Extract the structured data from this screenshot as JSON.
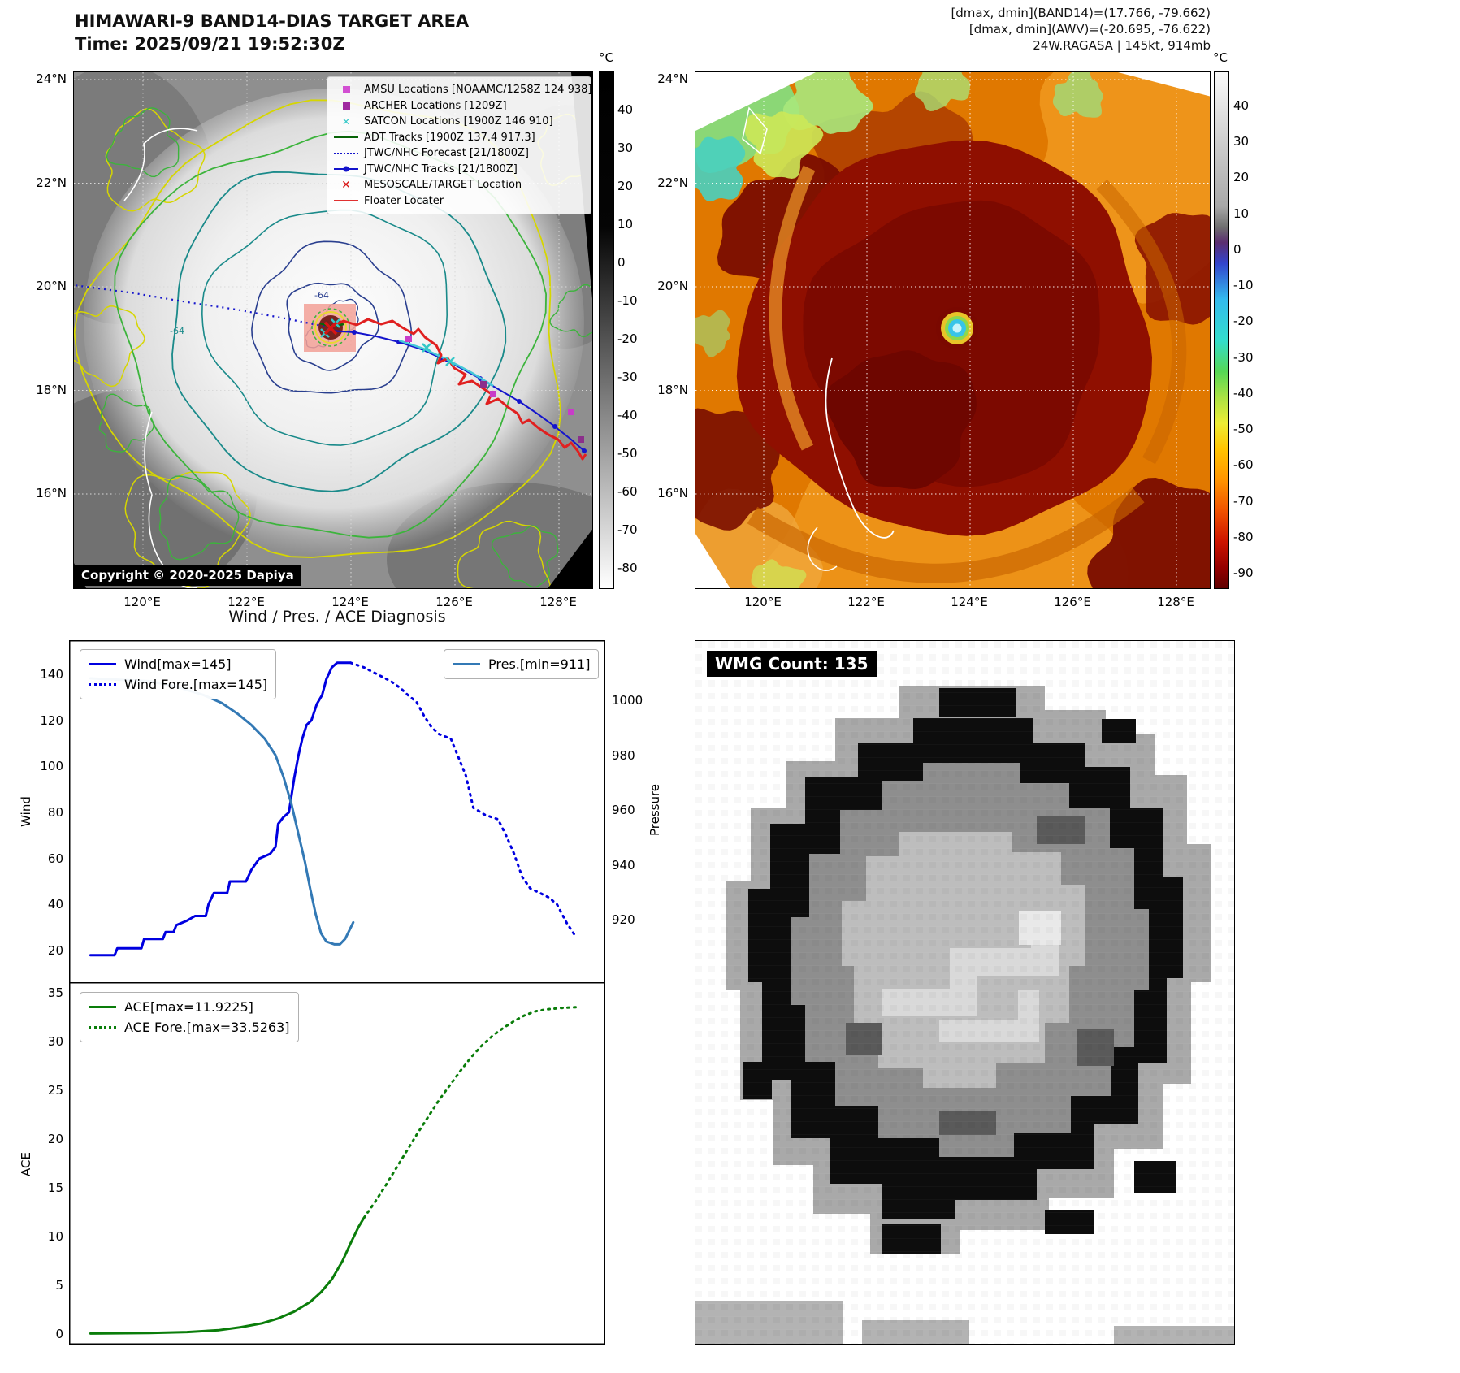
{
  "panel_tl": {
    "title": "HIMAWARI-9 BAND14-DIAS TARGET AREA",
    "subtitle": "Time: 2025/09/21 19:52:30Z",
    "copyright": "Copyright © 2020-2025 Dapiya",
    "colorbar_unit": "°C",
    "colorbar_ticks": [
      "40",
      "30",
      "20",
      "10",
      "0",
      "-10",
      "-20",
      "-30",
      "-40",
      "-50",
      "-60",
      "-70",
      "-80"
    ],
    "x_ticks": [
      "120°E",
      "122°E",
      "124°E",
      "126°E",
      "128°E"
    ],
    "y_ticks": [
      "24°N",
      "22°N",
      "20°N",
      "18°N",
      "16°N"
    ],
    "contour_labels": [
      "-64",
      "-64"
    ],
    "legend": [
      {
        "label": "AMSU Locations [NOAAMC/1258Z 124 938]",
        "marker": "square",
        "color": "#d24fd2"
      },
      {
        "label": "ARCHER Locations [1209Z]",
        "marker": "square",
        "color": "#a02aa0"
      },
      {
        "label": "SATCON Locations [1900Z 146 910]",
        "marker": "x",
        "color": "#35c8c8"
      },
      {
        "label": "ADT Tracks [1900Z 137.4 917.3]",
        "marker": "line",
        "color": "#076507"
      },
      {
        "label": "JTWC/NHC Forecast [21/1800Z]",
        "marker": "dotted",
        "color": "#1414cc"
      },
      {
        "label": "JTWC/NHC Tracks [21/1800Z]",
        "marker": "line-dot",
        "color": "#1414cc"
      },
      {
        "label": "MESOSCALE/TARGET Location",
        "marker": "x-bold",
        "color": "#d81414"
      },
      {
        "label": "Floater Locater",
        "marker": "line",
        "color": "#e03030"
      }
    ]
  },
  "panel_tr": {
    "header_lines": [
      "[dmax, dmin](BAND14)=(17.766, -79.662)",
      "[dmax, dmin](AWV)=(-20.695, -76.622)",
      "24W.RAGASA | 145kt, 914mb"
    ],
    "colorbar_unit": "°C",
    "colorbar_ticks": [
      "40",
      "30",
      "20",
      "10",
      "0",
      "-10",
      "-20",
      "-30",
      "-40",
      "-50",
      "-60",
      "-70",
      "-80",
      "-90"
    ],
    "x_ticks": [
      "120°E",
      "122°E",
      "124°E",
      "126°E",
      "128°E"
    ],
    "y_ticks": [
      "24°N",
      "22°N",
      "20°N",
      "18°N",
      "16°N"
    ]
  },
  "panel_br": {
    "label": "WMG Count: 135"
  },
  "chart_data": [
    {
      "type": "line",
      "title": "Wind / Pres. / ACE Diagnosis",
      "ylabel_left": "Wind",
      "ylabel_right": "Pressure",
      "y_left_ticks": [
        140,
        120,
        100,
        80,
        60,
        40,
        20
      ],
      "y_right_ticks": [
        1000,
        980,
        960,
        940,
        920
      ],
      "legend_position": "upper left / upper right",
      "series": [
        {
          "name": "Wind[max=145]",
          "axis": "wind",
          "style": "solid",
          "color": "#0000e0",
          "points": [
            [
              0.04,
              18
            ],
            [
              0.085,
              18
            ],
            [
              0.09,
              21
            ],
            [
              0.135,
              21
            ],
            [
              0.14,
              25
            ],
            [
              0.175,
              25
            ],
            [
              0.18,
              28
            ],
            [
              0.195,
              28
            ],
            [
              0.2,
              31
            ],
            [
              0.22,
              33
            ],
            [
              0.235,
              35
            ],
            [
              0.255,
              35
            ],
            [
              0.26,
              40
            ],
            [
              0.27,
              45
            ],
            [
              0.295,
              45
            ],
            [
              0.3,
              50
            ],
            [
              0.33,
              50
            ],
            [
              0.34,
              55
            ],
            [
              0.355,
              60
            ],
            [
              0.375,
              62
            ],
            [
              0.385,
              65
            ],
            [
              0.39,
              75
            ],
            [
              0.4,
              78
            ],
            [
              0.41,
              80
            ],
            [
              0.42,
              95
            ],
            [
              0.428,
              105
            ],
            [
              0.435,
              112
            ],
            [
              0.443,
              118
            ],
            [
              0.452,
              120
            ],
            [
              0.462,
              127
            ],
            [
              0.472,
              131
            ],
            [
              0.48,
              138
            ],
            [
              0.49,
              143
            ],
            [
              0.5,
              145
            ],
            [
              0.525,
              145
            ]
          ]
        },
        {
          "name": "Wind Fore.[max=145]",
          "axis": "wind",
          "style": "dotted",
          "color": "#0000e0",
          "points": [
            [
              0.525,
              145
            ],
            [
              0.55,
              143
            ],
            [
              0.575,
              140
            ],
            [
              0.6,
              137
            ],
            [
              0.618,
              134
            ],
            [
              0.632,
              131
            ],
            [
              0.648,
              128
            ],
            [
              0.662,
              122
            ],
            [
              0.676,
              117
            ],
            [
              0.69,
              114
            ],
            [
              0.712,
              112
            ],
            [
              0.726,
              104
            ],
            [
              0.74,
              96
            ],
            [
              0.754,
              82
            ],
            [
              0.775,
              79
            ],
            [
              0.8,
              77
            ],
            [
              0.815,
              70
            ],
            [
              0.83,
              62
            ],
            [
              0.845,
              52
            ],
            [
              0.86,
              47
            ],
            [
              0.878,
              45
            ],
            [
              0.895,
              43
            ],
            [
              0.91,
              40
            ],
            [
              0.928,
              32
            ],
            [
              0.945,
              26
            ]
          ]
        },
        {
          "name": "Pres.[min=911]",
          "axis": "pres",
          "style": "solid",
          "color": "#3379b5",
          "points": [
            [
              0.04,
              1008
            ],
            [
              0.15,
              1007
            ],
            [
              0.2,
              1005
            ],
            [
              0.25,
              1002
            ],
            [
              0.285,
              999
            ],
            [
              0.315,
              995
            ],
            [
              0.34,
              991
            ],
            [
              0.365,
              986
            ],
            [
              0.385,
              980
            ],
            [
              0.4,
              972
            ],
            [
              0.415,
              962
            ],
            [
              0.428,
              951
            ],
            [
              0.44,
              941
            ],
            [
              0.45,
              931
            ],
            [
              0.46,
              922
            ],
            [
              0.47,
              915
            ],
            [
              0.48,
              912
            ],
            [
              0.495,
              911
            ],
            [
              0.505,
              911
            ],
            [
              0.515,
              913
            ],
            [
              0.53,
              919
            ]
          ]
        }
      ]
    },
    {
      "type": "line",
      "ylabel": "ACE",
      "y_ticks": [
        35,
        30,
        25,
        20,
        15,
        10,
        5,
        0
      ],
      "series": [
        {
          "name": "ACE[max=11.9225]",
          "axis": "ace",
          "style": "solid",
          "color": "#0a7d0a",
          "points": [
            [
              0.04,
              0.05
            ],
            [
              0.15,
              0.1
            ],
            [
              0.22,
              0.2
            ],
            [
              0.28,
              0.4
            ],
            [
              0.32,
              0.7
            ],
            [
              0.36,
              1.1
            ],
            [
              0.39,
              1.6
            ],
            [
              0.42,
              2.3
            ],
            [
              0.45,
              3.3
            ],
            [
              0.47,
              4.3
            ],
            [
              0.49,
              5.6
            ],
            [
              0.51,
              7.5
            ],
            [
              0.525,
              9.3
            ],
            [
              0.54,
              11.0
            ],
            [
              0.55,
              11.92
            ]
          ]
        },
        {
          "name": "ACE Fore.[max=33.5263]",
          "axis": "ace",
          "style": "dotted",
          "color": "#0a7d0a",
          "points": [
            [
              0.55,
              11.92
            ],
            [
              0.57,
              13.5
            ],
            [
              0.59,
              15.2
            ],
            [
              0.61,
              17
            ],
            [
              0.63,
              18.8
            ],
            [
              0.65,
              20.6
            ],
            [
              0.67,
              22.3
            ],
            [
              0.69,
              24
            ],
            [
              0.71,
              25.5
            ],
            [
              0.73,
              27
            ],
            [
              0.75,
              28.4
            ],
            [
              0.77,
              29.6
            ],
            [
              0.79,
              30.6
            ],
            [
              0.81,
              31.4
            ],
            [
              0.83,
              32.1
            ],
            [
              0.85,
              32.7
            ],
            [
              0.87,
              33.1
            ],
            [
              0.89,
              33.3
            ],
            [
              0.92,
              33.45
            ],
            [
              0.95,
              33.53
            ]
          ]
        }
      ]
    }
  ]
}
